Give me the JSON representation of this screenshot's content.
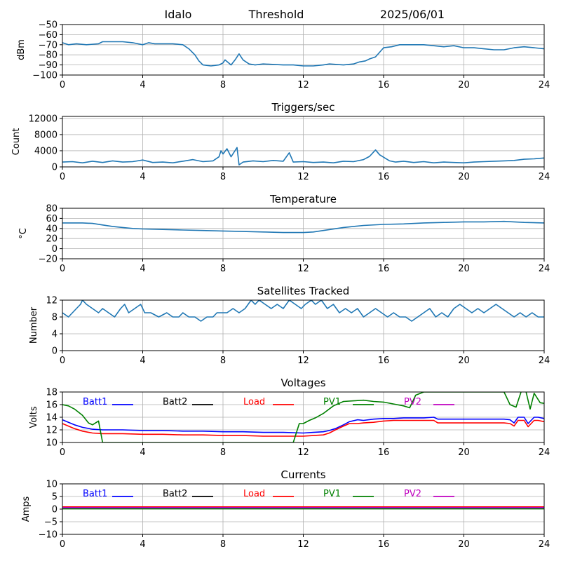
{
  "header": {
    "station": "Idalo",
    "label": "Threshold",
    "date": "2025/06/01"
  },
  "chart_data": [
    {
      "type": "line",
      "title": "",
      "xlabel": "",
      "ylabel": "dBm",
      "xlim": [
        0,
        24
      ],
      "ylim": [
        -100,
        -50
      ],
      "xticks": [
        0,
        4,
        8,
        12,
        16,
        20,
        24
      ],
      "yticks": [
        -100,
        -90,
        -80,
        -70,
        -60,
        -50
      ],
      "grid": true,
      "series": [
        {
          "color": "#1f77b4",
          "x": [
            0,
            0.3,
            0.7,
            1.2,
            1.8,
            2.0,
            2.5,
            3.0,
            3.5,
            4.0,
            4.3,
            4.6,
            5.0,
            5.5,
            6.0,
            6.3,
            6.6,
            6.8,
            7.0,
            7.4,
            7.8,
            8.0,
            8.1,
            8.4,
            8.6,
            8.8,
            9.0,
            9.3,
            9.6,
            10.0,
            11.0,
            11.5,
            12.0,
            12.5,
            13.0,
            13.3,
            14.0,
            14.5,
            14.8,
            15.1,
            15.3,
            15.6,
            16.0,
            16.4,
            16.8,
            17.1,
            17.5,
            18.0,
            18.5,
            19.0,
            19.5,
            20.0,
            20.5,
            21.0,
            21.5,
            22.0,
            22.5,
            23.0,
            23.5,
            24.0
          ],
          "y": [
            -68,
            -70,
            -69,
            -70,
            -69,
            -67,
            -67,
            -67,
            -68,
            -70,
            -68,
            -69,
            -69,
            -69,
            -70,
            -74,
            -80,
            -86,
            -90,
            -91,
            -90,
            -88,
            -85,
            -90,
            -85,
            -79,
            -85,
            -89,
            -90,
            -89,
            -90,
            -90,
            -91,
            -91,
            -90,
            -89,
            -90,
            -89,
            -87,
            -86,
            -84,
            -82,
            -73,
            -72,
            -70,
            -70,
            -70,
            -70,
            -71,
            -72,
            -71,
            -73,
            -73,
            -74,
            -75,
            -75,
            -73,
            -72,
            -73,
            -74
          ]
        }
      ]
    },
    {
      "type": "line",
      "title": "Triggers/sec",
      "xlabel": "",
      "ylabel": "Count",
      "xlim": [
        0,
        24
      ],
      "ylim": [
        0,
        12500
      ],
      "xticks": [
        0,
        4,
        8,
        12,
        16,
        20,
        24
      ],
      "yticks": [
        0,
        4000,
        8000,
        12000
      ],
      "grid": true,
      "series": [
        {
          "color": "#1f77b4",
          "x": [
            0,
            0.5,
            1.0,
            1.5,
            2.0,
            2.5,
            3.0,
            3.5,
            4.0,
            4.5,
            5.0,
            5.5,
            6.0,
            6.5,
            7.0,
            7.5,
            7.8,
            7.9,
            8.0,
            8.2,
            8.4,
            8.7,
            8.8,
            9.0,
            9.5,
            10.0,
            10.5,
            11.0,
            11.3,
            11.5,
            12.0,
            12.5,
            13.0,
            13.5,
            14.0,
            14.5,
            15.0,
            15.3,
            15.6,
            15.8,
            16.0,
            16.3,
            16.6,
            17.0,
            17.5,
            18.0,
            18.5,
            19.0,
            19.5,
            20.0,
            20.5,
            21.0,
            21.5,
            22.0,
            22.5,
            23.0,
            23.5,
            24.0
          ],
          "y": [
            1200,
            1300,
            1000,
            1400,
            1100,
            1500,
            1200,
            1300,
            1700,
            1100,
            1200,
            1000,
            1400,
            1800,
            1300,
            1500,
            2500,
            4000,
            3200,
            4500,
            2500,
            4800,
            500,
            1200,
            1500,
            1300,
            1600,
            1400,
            3500,
            1200,
            1300,
            1100,
            1200,
            1000,
            1400,
            1300,
            1800,
            2600,
            4200,
            3000,
            2400,
            1500,
            1200,
            1400,
            1100,
            1300,
            1000,
            1200,
            1100,
            1000,
            1200,
            1300,
            1400,
            1500,
            1600,
            1900,
            2000,
            2200
          ]
        }
      ]
    },
    {
      "type": "line",
      "title": "Temperature",
      "xlabel": "",
      "ylabel": "°C",
      "xlim": [
        0,
        24
      ],
      "ylim": [
        -20,
        80
      ],
      "xticks": [
        0,
        4,
        8,
        12,
        16,
        20,
        24
      ],
      "yticks": [
        -20,
        0,
        20,
        40,
        60,
        80
      ],
      "grid": true,
      "series": [
        {
          "color": "#1f77b4",
          "x": [
            0,
            1,
            1.5,
            2,
            2.5,
            3,
            3.5,
            4,
            5,
            6,
            7,
            8,
            9,
            10,
            11,
            12,
            12.5,
            13,
            14,
            15,
            16,
            17,
            18,
            19,
            20,
            21,
            22,
            23,
            24
          ],
          "y": [
            51,
            51,
            50,
            47,
            44,
            42,
            40,
            39,
            38,
            37,
            36,
            35,
            34,
            33,
            32,
            32,
            33,
            36,
            42,
            46,
            48,
            49,
            51,
            52,
            53,
            53,
            54,
            52,
            51
          ]
        }
      ]
    },
    {
      "type": "line",
      "title": "Satellites Tracked",
      "xlabel": "",
      "ylabel": "Number",
      "xlim": [
        0,
        24
      ],
      "ylim": [
        0,
        12
      ],
      "xticks": [
        0,
        4,
        8,
        12,
        16,
        20,
        24
      ],
      "yticks": [
        0,
        4,
        8,
        12
      ],
      "grid": true,
      "series": [
        {
          "color": "#1f77b4",
          "x": [
            0,
            0.3,
            0.5,
            0.7,
            0.9,
            1.0,
            1.2,
            1.5,
            1.8,
            2.0,
            2.3,
            2.6,
            2.9,
            3.1,
            3.3,
            3.6,
            3.9,
            4.1,
            4.4,
            4.8,
            5.2,
            5.5,
            5.8,
            6.0,
            6.3,
            6.6,
            6.9,
            7.2,
            7.5,
            7.7,
            8.0,
            8.2,
            8.5,
            8.8,
            9.1,
            9.4,
            9.6,
            9.8,
            10.1,
            10.4,
            10.7,
            11.0,
            11.3,
            11.6,
            11.9,
            12.1,
            12.4,
            12.6,
            12.9,
            13.2,
            13.5,
            13.8,
            14.1,
            14.4,
            14.7,
            15.0,
            15.3,
            15.6,
            15.9,
            16.2,
            16.5,
            16.8,
            17.1,
            17.4,
            17.7,
            18.0,
            18.3,
            18.6,
            18.9,
            19.2,
            19.5,
            19.8,
            20.1,
            20.4,
            20.7,
            21.0,
            21.3,
            21.6,
            21.9,
            22.2,
            22.5,
            22.8,
            23.1,
            23.4,
            23.7,
            24.0
          ],
          "y": [
            9,
            8,
            9,
            10,
            11,
            12,
            11,
            10,
            9,
            10,
            9,
            8,
            10,
            11,
            9,
            10,
            11,
            9,
            9,
            8,
            9,
            8,
            8,
            9,
            8,
            8,
            7,
            8,
            8,
            9,
            9,
            9,
            10,
            9,
            10,
            12,
            11,
            12,
            11,
            10,
            11,
            10,
            12,
            11,
            10,
            11,
            12,
            11,
            12,
            10,
            11,
            9,
            10,
            9,
            10,
            8,
            9,
            10,
            9,
            8,
            9,
            8,
            8,
            7,
            8,
            9,
            10,
            8,
            9,
            8,
            10,
            11,
            10,
            9,
            10,
            9,
            10,
            11,
            10,
            9,
            8,
            9,
            8,
            9,
            8,
            8
          ]
        }
      ]
    },
    {
      "type": "line",
      "title": "Voltages",
      "xlabel": "",
      "ylabel": "Volts",
      "xlim": [
        0,
        24
      ],
      "ylim": [
        10,
        18
      ],
      "xticks": [
        0,
        4,
        8,
        12,
        16,
        20,
        24
      ],
      "yticks": [
        10,
        12,
        14,
        16,
        18
      ],
      "grid": true,
      "legend": "top",
      "series": [
        {
          "name": "Batt1",
          "color": "#0000ff",
          "x": [
            0,
            0.3,
            0.6,
            1.0,
            1.5,
            2.0,
            3.0,
            4.0,
            5.0,
            6.0,
            7.0,
            8.0,
            9.0,
            10.0,
            11.0,
            12.0,
            12.5,
            13.0,
            13.3,
            13.6,
            14.0,
            14.3,
            14.7,
            15.0,
            15.5,
            16.0,
            16.5,
            17.0,
            17.5,
            18.0,
            18.5,
            18.7,
            19.0,
            20.0,
            21.0,
            22.0,
            22.3,
            22.5,
            22.7,
            23.0,
            23.2,
            23.5,
            23.7,
            24.0
          ],
          "y": [
            13.6,
            13.2,
            12.8,
            12.4,
            12.1,
            12.0,
            12.0,
            11.9,
            11.9,
            11.8,
            11.8,
            11.7,
            11.7,
            11.6,
            11.6,
            11.5,
            11.6,
            11.7,
            11.9,
            12.2,
            12.8,
            13.3,
            13.6,
            13.5,
            13.7,
            13.8,
            13.8,
            13.9,
            13.9,
            13.9,
            14.0,
            13.7,
            13.7,
            13.7,
            13.7,
            13.7,
            13.6,
            13.1,
            14.0,
            14.0,
            13.0,
            14.0,
            14.0,
            13.8
          ]
        },
        {
          "name": "Batt2",
          "color": "#000000",
          "x": [],
          "y": []
        },
        {
          "name": "Load",
          "color": "#ff0000",
          "x": [
            0,
            0.3,
            0.6,
            1.0,
            1.5,
            2.0,
            3.0,
            4.0,
            5.0,
            6.0,
            7.0,
            8.0,
            9.0,
            10.0,
            11.0,
            12.0,
            12.5,
            13.0,
            13.3,
            13.6,
            14.0,
            14.3,
            14.7,
            15.0,
            15.5,
            16.0,
            16.5,
            17.0,
            17.5,
            18.0,
            18.5,
            18.7,
            19.0,
            20.0,
            21.0,
            22.0,
            22.3,
            22.5,
            22.7,
            23.0,
            23.2,
            23.5,
            23.7,
            24.0
          ],
          "y": [
            13.0,
            12.6,
            12.2,
            11.8,
            11.5,
            11.4,
            11.4,
            11.3,
            11.3,
            11.2,
            11.2,
            11.1,
            11.1,
            11.0,
            11.0,
            11.0,
            11.1,
            11.2,
            11.5,
            12.0,
            12.6,
            13.0,
            13.0,
            13.1,
            13.2,
            13.4,
            13.5,
            13.5,
            13.5,
            13.5,
            13.5,
            13.1,
            13.1,
            13.1,
            13.1,
            13.1,
            13.0,
            12.6,
            13.5,
            13.5,
            12.5,
            13.5,
            13.5,
            13.3
          ]
        },
        {
          "name": "PV1",
          "color": "#008000",
          "x": [
            0,
            0.3,
            0.6,
            1.0,
            1.3,
            1.5,
            1.8,
            2.0,
            11.5,
            11.8,
            12.0,
            12.3,
            12.6,
            13.0,
            13.5,
            14.0,
            14.5,
            15.0,
            15.5,
            16.0,
            16.5,
            17.0,
            17.3,
            17.6,
            18.0,
            22.0,
            22.3,
            22.6,
            22.9,
            23.1,
            23.3,
            23.5,
            23.8,
            24.0
          ],
          "y": [
            16.0,
            15.8,
            15.3,
            14.3,
            13.1,
            12.8,
            13.4,
            10.0,
            10.0,
            13.0,
            13.0,
            13.5,
            13.9,
            14.6,
            15.8,
            16.5,
            16.6,
            16.7,
            16.5,
            16.4,
            16.1,
            15.8,
            15.5,
            17.5,
            18.0,
            18.0,
            16.0,
            15.6,
            18.5,
            18.0,
            15.3,
            17.8,
            16.3,
            16.2
          ]
        },
        {
          "name": "PV2",
          "color": "#bf00bf",
          "x": [],
          "y": []
        }
      ]
    },
    {
      "type": "line",
      "title": "Currents",
      "xlabel": "",
      "ylabel": "Amps",
      "xlim": [
        0,
        24
      ],
      "ylim": [
        -10,
        10
      ],
      "xticks": [
        0,
        4,
        8,
        12,
        16,
        20,
        24
      ],
      "yticks": [
        -10,
        -5,
        0,
        5,
        10
      ],
      "grid": true,
      "legend": "top",
      "series": [
        {
          "name": "Batt1",
          "color": "#0000ff",
          "x": [
            0,
            4,
            8,
            12,
            16,
            20,
            24
          ],
          "y": [
            0.4,
            0.4,
            0.4,
            0.4,
            0.4,
            0.4,
            0.4
          ]
        },
        {
          "name": "Batt2",
          "color": "#000000",
          "x": [],
          "y": []
        },
        {
          "name": "Load",
          "color": "#ff0000",
          "x": [
            0,
            4,
            8,
            12,
            16,
            20,
            24
          ],
          "y": [
            0.9,
            0.9,
            0.9,
            0.9,
            0.9,
            0.9,
            0.9
          ]
        },
        {
          "name": "PV1",
          "color": "#008000",
          "x": [
            0,
            4,
            8,
            12,
            16,
            20,
            24
          ],
          "y": [
            0.1,
            0.1,
            0.1,
            0.1,
            0.1,
            0.1,
            0.1
          ]
        },
        {
          "name": "PV2",
          "color": "#bf00bf",
          "x": [
            0,
            4,
            8,
            12,
            16,
            20,
            24
          ],
          "y": [
            0.6,
            0.6,
            0.6,
            0.6,
            0.6,
            0.6,
            0.6
          ]
        }
      ]
    }
  ]
}
